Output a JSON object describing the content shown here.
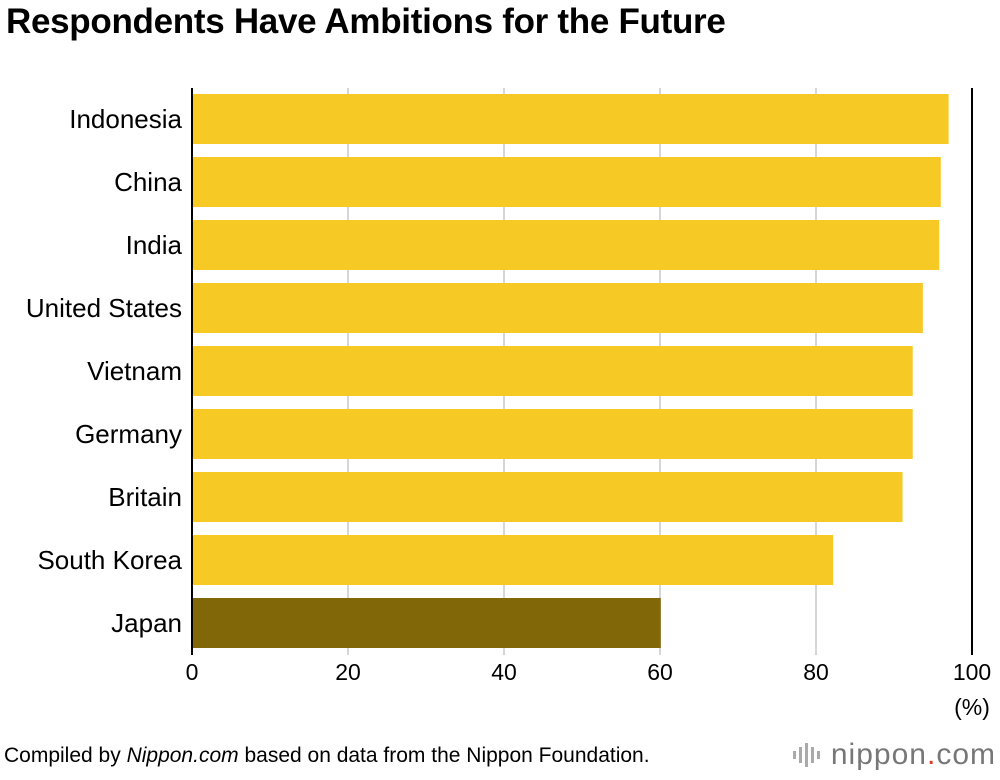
{
  "title": "Respondents Have Ambitions for the Future",
  "footer": {
    "prefix": "Compiled by ",
    "source_site": "Nippon.com",
    "suffix": " based on data from the Nippon Foundation."
  },
  "logo": {
    "brand": "nippon",
    "dot": ".",
    "tld": "com",
    "name": "nippon.com"
  },
  "colors": {
    "bar": "#F7C925",
    "highlight": "#816707",
    "grid": "#c8c8c8",
    "axis": "#000000"
  },
  "chart_data": {
    "type": "bar",
    "orientation": "horizontal",
    "categories": [
      "Indonesia",
      "China",
      "India",
      "United States",
      "Vietnam",
      "Germany",
      "Britain",
      "South Korea",
      "Japan"
    ],
    "values": [
      97.0,
      96.0,
      95.8,
      93.7,
      92.4,
      92.4,
      91.1,
      82.2,
      60.1
    ],
    "highlight": "Japan",
    "xlim": [
      0,
      100
    ],
    "xticks": [
      0,
      20,
      40,
      60,
      80,
      100
    ],
    "xticks_labels": [
      "0",
      "20",
      "40",
      "60",
      "80",
      "100"
    ],
    "unit": "(%)",
    "title": "Respondents Have Ambitions for the Future",
    "xlabel": "",
    "ylabel": "",
    "grid": true
  }
}
